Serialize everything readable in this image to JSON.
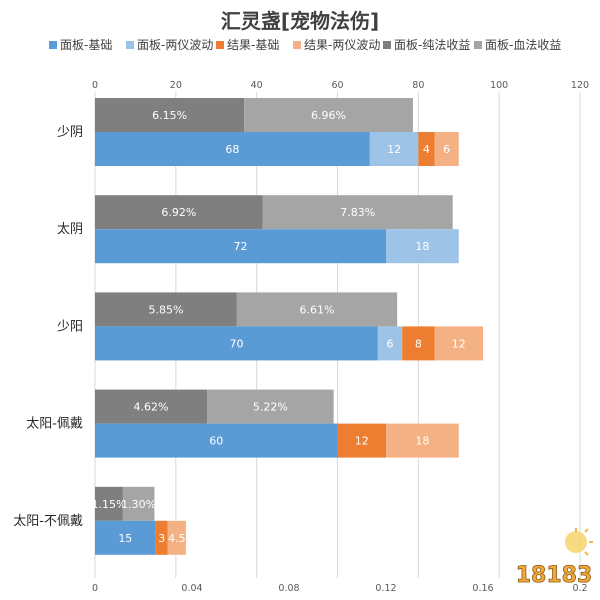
{
  "chart_data": {
    "type": "bar",
    "orientation": "horizontal",
    "stacked": true,
    "title": "汇灵盏[宠物法伤]",
    "categories": [
      "少阴",
      "太阴",
      "少阳",
      "太阳-佩戴",
      "太阳-不佩戴"
    ],
    "legend_position": "top",
    "grid": true,
    "top_axis": {
      "ticks": [
        "0",
        "20",
        "40",
        "60",
        "80",
        "100",
        "120"
      ],
      "range": [
        0,
        120
      ]
    },
    "bottom_axis": {
      "ticks": [
        "0",
        "0.04",
        "0.08",
        "0.12",
        "0.16",
        "0.2"
      ],
      "range": [
        0,
        0.2
      ]
    },
    "primary_series": [
      {
        "name": "面板-基础",
        "color": "#5B9BD5",
        "values": [
          68,
          72,
          70,
          60,
          15
        ],
        "labels": [
          "68",
          "72",
          "70",
          "60",
          "15"
        ]
      },
      {
        "name": "面板-两仪波动",
        "color": "#9DC3E6",
        "values": [
          12,
          18,
          6,
          0,
          0
        ],
        "labels": [
          "12",
          "18",
          "6",
          "",
          ""
        ]
      },
      {
        "name": "结果-基础",
        "color": "#ED7D31",
        "values": [
          4,
          0,
          8,
          12,
          3
        ],
        "labels": [
          "4",
          "",
          "8",
          "12",
          "3"
        ]
      },
      {
        "name": "结果-两仪波动",
        "color": "#F4B183",
        "values": [
          6,
          0,
          12,
          18,
          4.5
        ],
        "labels": [
          "6",
          "",
          "12",
          "18",
          "4.5"
        ]
      }
    ],
    "secondary_series": [
      {
        "name": "面板-纯法收益",
        "color": "#7F7F7F",
        "values": [
          0.0615,
          0.0692,
          0.0585,
          0.0462,
          0.0115
        ],
        "labels": [
          "6.15%",
          "6.92%",
          "5.85%",
          "4.62%",
          "1.15%"
        ]
      },
      {
        "name": "面板-血法收益",
        "color": "#A5A5A5",
        "values": [
          0.0696,
          0.0783,
          0.0661,
          0.0522,
          0.013
        ],
        "labels": [
          "6.96%",
          "7.83%",
          "6.61%",
          "5.22%",
          "1.30%"
        ]
      }
    ]
  },
  "watermark": {
    "text": "18183",
    "icon_name": "game-site-logo"
  }
}
